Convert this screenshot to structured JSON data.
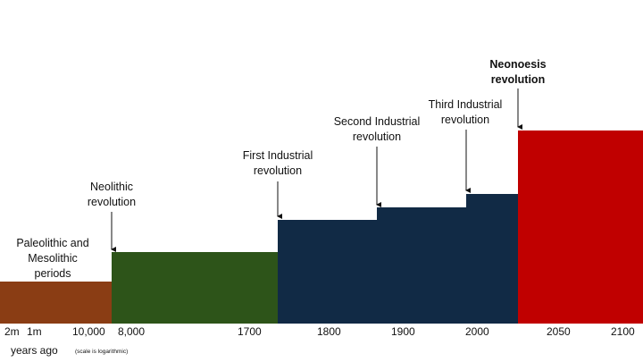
{
  "blocks": [
    {
      "id": "paleolithic",
      "color": "#8a3d14"
    },
    {
      "id": "neolithic",
      "color": "#2d5419"
    },
    {
      "id": "first",
      "color": "#112a45"
    },
    {
      "id": "second",
      "color": "#112a45"
    },
    {
      "id": "third",
      "color": "#112a45"
    },
    {
      "id": "neonoesis",
      "color": "#c00000"
    }
  ],
  "labels": {
    "paleolithic": "Paleolithic and\nMesolithic\nperiods",
    "neolithic": "Neolithic\nrevolution",
    "first": "First Industrial\nrevolution",
    "second": "Second Industrial\nrevolution",
    "third": "Third Industrial\nrevolution",
    "neonoesis": "Neonoesis\nrevolution"
  },
  "ticks": {
    "t2m": "2m",
    "t1m": "1m",
    "t10000": "10,000",
    "t8000": "8,000",
    "t1700": "1700",
    "t1800": "1800",
    "t1900": "1900",
    "t2000": "2000",
    "t2050": "2050",
    "t2100": "2100"
  },
  "axis": {
    "title": "years ago",
    "note": "(scale is logarithmic)"
  }
}
